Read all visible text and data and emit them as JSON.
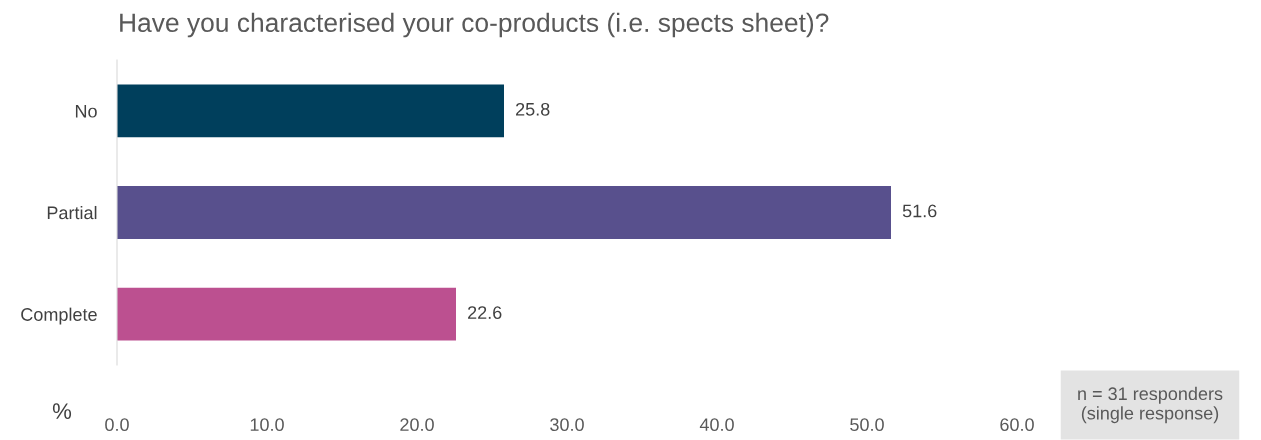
{
  "chart_data": {
    "type": "bar",
    "orientation": "horizontal",
    "title": "Have you characterised your co-products (i.e. spects sheet)?",
    "categories": [
      "No",
      "Partial",
      "Complete"
    ],
    "values": [
      25.8,
      51.6,
      22.6
    ],
    "colors": [
      "#003f5c",
      "#58508d",
      "#bc5090"
    ],
    "xlabel": "%",
    "xlim": [
      0,
      60
    ],
    "xticks": [
      {
        "value": 0,
        "label": "0.0"
      },
      {
        "value": 10,
        "label": "10.0"
      },
      {
        "value": 20,
        "label": "20.0"
      },
      {
        "value": 30,
        "label": "30.0"
      },
      {
        "value": 40,
        "label": "40.0"
      },
      {
        "value": 50,
        "label": "50.0"
      },
      {
        "value": 60,
        "label": "60.0"
      }
    ],
    "data_labels": true,
    "grid": false,
    "legend": false,
    "annotations": [
      "n = 31 responders\n(single response)"
    ]
  }
}
